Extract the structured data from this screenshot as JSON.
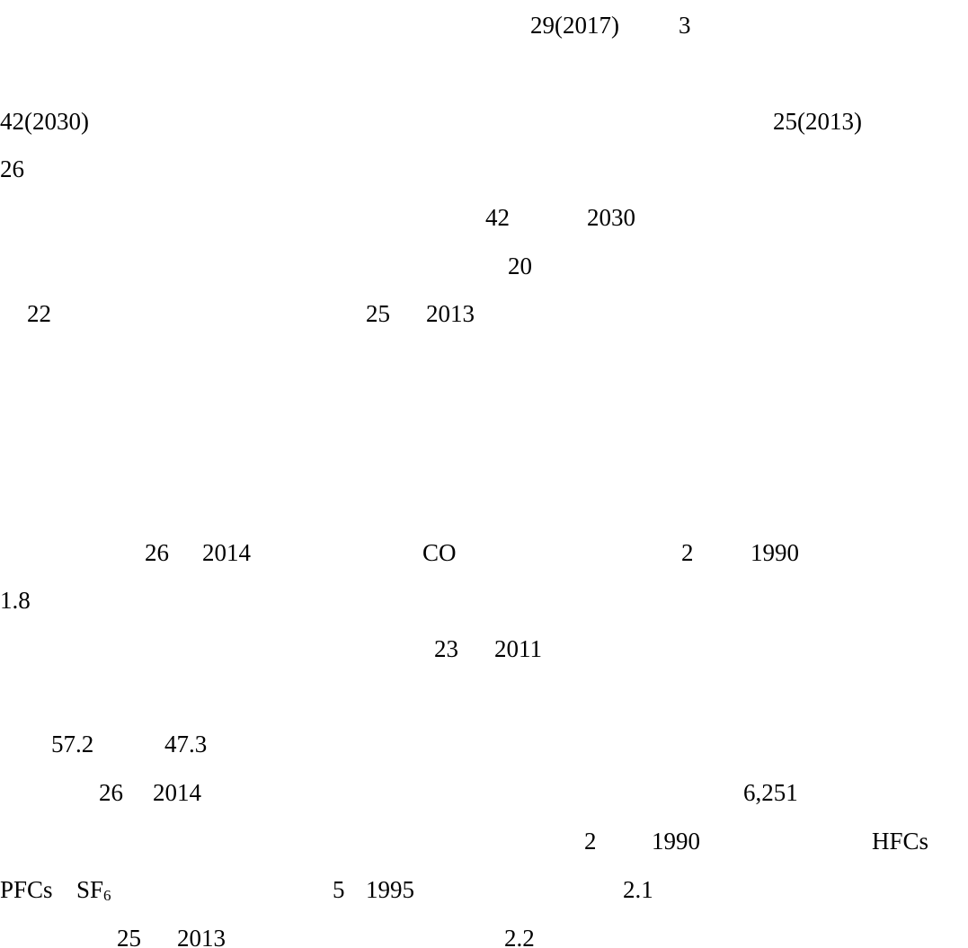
{
  "lines": [
    [
      "29(2017)",
      "3"
    ],
    [
      "42(2030)",
      "25(2013)"
    ],
    [
      "26"
    ],
    [
      "42",
      "2030"
    ],
    [
      "20"
    ],
    [
      "22",
      "25",
      "2013"
    ],
    [
      "26",
      "2014",
      "CO",
      "2",
      "1990"
    ],
    [
      "1.8"
    ],
    [
      "23",
      "2011"
    ],
    [
      "57.2",
      "47.3"
    ],
    [
      "26",
      "2014",
      "6,251"
    ],
    [
      "2",
      "1990",
      "HFCs"
    ],
    [
      "PFCs",
      {
        "text": "SF",
        "sub": "6"
      },
      "5",
      "1995",
      "2.1"
    ],
    [
      "25",
      "2013",
      "2.2"
    ]
  ]
}
